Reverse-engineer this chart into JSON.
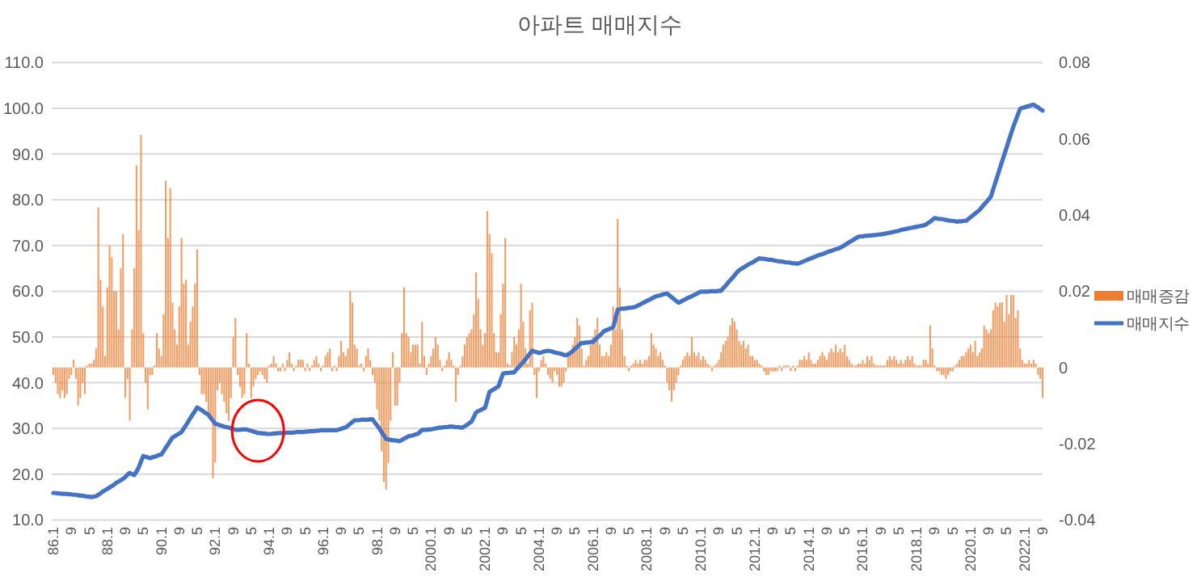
{
  "chart_data": {
    "type": "bar",
    "title": "아파트 매매지수",
    "categories": [
      "86.1",
      null,
      null,
      null,
      null,
      null,
      null,
      null,
      "9",
      null,
      null,
      null,
      null,
      null,
      null,
      null,
      "5",
      null,
      null,
      null,
      null,
      null,
      null,
      null,
      "88.1",
      null,
      null,
      null,
      null,
      null,
      null,
      null,
      "9",
      null,
      null,
      null,
      null,
      null,
      null,
      null,
      "5",
      null,
      null,
      null,
      null,
      null,
      null,
      null,
      "90.1",
      null,
      null,
      null,
      null,
      null,
      null,
      null,
      "9",
      null,
      null,
      null,
      null,
      null,
      null,
      null,
      "5",
      null,
      null,
      null,
      null,
      null,
      null,
      null,
      "92.1",
      null,
      null,
      null,
      null,
      null,
      null,
      null,
      "9",
      null,
      null,
      null,
      null,
      null,
      null,
      null,
      "5",
      null,
      null,
      null,
      null,
      null,
      null,
      null,
      "94.1",
      null,
      null,
      null,
      null,
      null,
      null,
      null,
      "9",
      null,
      null,
      null,
      null,
      null,
      null,
      null,
      "5",
      null,
      null,
      null,
      null,
      null,
      null,
      null,
      "96.1",
      null,
      null,
      null,
      null,
      null,
      null,
      null,
      "9",
      null,
      null,
      null,
      null,
      null,
      null,
      null,
      "5",
      null,
      null,
      null,
      null,
      null,
      null,
      null,
      "98.1",
      null,
      null,
      null,
      null,
      null,
      null,
      null,
      "9",
      null,
      null,
      null,
      null,
      null,
      null,
      null,
      "5",
      null,
      null,
      null,
      null,
      null,
      null,
      null,
      "2000.1",
      null,
      null,
      null,
      null,
      null,
      null,
      null,
      "9",
      null,
      null,
      null,
      null,
      null,
      null,
      null,
      "5",
      null,
      null,
      null,
      null,
      null,
      null,
      null,
      "2002.1",
      null,
      null,
      null,
      null,
      null,
      null,
      null,
      "9",
      null,
      null,
      null,
      null,
      null,
      null,
      null,
      "5",
      null,
      null,
      null,
      null,
      null,
      null,
      null,
      "2004.1",
      null,
      null,
      null,
      null,
      null,
      null,
      null,
      "9",
      null,
      null,
      null,
      null,
      null,
      null,
      null,
      "5",
      null,
      null,
      null,
      null,
      null,
      null,
      null,
      "2006.1",
      null,
      null,
      null,
      null,
      null,
      null,
      null,
      "9",
      null,
      null,
      null,
      null,
      null,
      null,
      null,
      "5",
      null,
      null,
      null,
      null,
      null,
      null,
      null,
      "2008.1",
      null,
      null,
      null,
      null,
      null,
      null,
      null,
      "9",
      null,
      null,
      null,
      null,
      null,
      null,
      null,
      "5",
      null,
      null,
      null,
      null,
      null,
      null,
      null,
      "2010.1",
      null,
      null,
      null,
      null,
      null,
      null,
      null,
      "9",
      null,
      null,
      null,
      null,
      null,
      null,
      null,
      "5",
      null,
      null,
      null,
      null,
      null,
      null,
      null,
      "2012.1",
      null,
      null,
      null,
      null,
      null,
      null,
      null,
      "9",
      null,
      null,
      null,
      null,
      null,
      null,
      null,
      "5",
      null,
      null,
      null,
      null,
      null,
      null,
      null,
      "2014.1",
      null,
      null,
      null,
      null,
      null,
      null,
      null,
      "9",
      null,
      null,
      null,
      null,
      null,
      null,
      null,
      "5",
      null,
      null,
      null,
      null,
      null,
      null,
      null,
      "2016.1",
      null,
      null,
      null,
      null,
      null,
      null,
      null,
      "9",
      null,
      null,
      null,
      null,
      null,
      null,
      null,
      "5",
      null,
      null,
      null,
      null,
      null,
      null,
      null,
      "2018.1",
      null,
      null,
      null,
      null,
      null,
      null,
      null,
      "9",
      null,
      null,
      null,
      null,
      null,
      null,
      null,
      "5",
      null,
      null,
      null,
      null,
      null,
      null,
      null,
      "2020.1",
      null,
      null,
      null,
      null,
      null,
      null,
      null,
      "9",
      null,
      null,
      null,
      null,
      null,
      null,
      null,
      "5",
      null,
      null,
      null,
      null,
      null,
      null,
      null,
      "2022.1",
      null,
      null,
      null,
      null,
      null,
      null,
      null,
      "9"
    ],
    "series": [
      {
        "name": "매매증감",
        "axis": "y2",
        "color": "#ed7d31",
        "values": [
          -0.002,
          -0.004,
          -0.007,
          -0.008,
          -0.006,
          -0.008,
          -0.007,
          -0.003,
          -0.002,
          0.002,
          -0.003,
          -0.01,
          -0.008,
          -0.004,
          -0.007,
          0.0,
          0.001,
          0.001,
          0.002,
          0.005,
          0.042,
          0.023,
          0.016,
          0.003,
          0.021,
          0.032,
          0.029,
          0.02,
          0.02,
          0.01,
          0.026,
          0.035,
          -0.008,
          -0.003,
          -0.014,
          0.01,
          0.026,
          0.053,
          0.036,
          0.061,
          0.009,
          -0.004,
          -0.011,
          -0.002,
          -0.002,
          0.0,
          0.009,
          0.005,
          0.003,
          0.014,
          0.049,
          0.034,
          0.047,
          0.017,
          0.01,
          0.006,
          0.016,
          0.034,
          0.022,
          0.023,
          0.006,
          0.012,
          0.016,
          0.022,
          0.031,
          -0.002,
          -0.007,
          -0.007,
          -0.009,
          -0.012,
          -0.013,
          -0.029,
          -0.025,
          -0.006,
          -0.004,
          -0.007,
          -0.009,
          -0.012,
          -0.014,
          -0.008,
          0.008,
          0.013,
          -0.002,
          -0.005,
          -0.008,
          -0.007,
          0.009,
          0.001,
          -0.008,
          -0.005,
          -0.003,
          -0.002,
          -0.001,
          -0.002,
          -0.003,
          -0.004,
          0.0,
          0.001,
          0.003,
          0.001,
          -0.001,
          -0.001,
          0.001,
          -0.001,
          0.002,
          0.004,
          0.001,
          -0.001,
          0.0,
          0.002,
          0.002,
          0.002,
          -0.001,
          0.001,
          -0.001,
          0.0,
          0.002,
          0.003,
          0.001,
          -0.001,
          0.0,
          0.003,
          0.004,
          0.005,
          -0.001,
          0.0,
          -0.001,
          0.003,
          0.007,
          0.004,
          0.003,
          0.005,
          0.02,
          0.017,
          0.006,
          0.005,
          0.0,
          0.001,
          -0.001,
          0.003,
          0.005,
          0.002,
          -0.002,
          -0.004,
          -0.011,
          -0.014,
          -0.022,
          -0.03,
          -0.032,
          -0.025,
          -0.014,
          0.004,
          -0.01,
          -0.01,
          -0.004,
          0.009,
          0.021,
          0.009,
          0.008,
          0.004,
          0.006,
          0.006,
          0.006,
          0.001,
          0.012,
          0.003,
          -0.002,
          0.001,
          0.003,
          0.005,
          0.008,
          0.006,
          0.002,
          -0.001,
          0.0,
          0.002,
          0.004,
          0.002,
          0.0,
          -0.009,
          -0.002,
          0.0,
          0.003,
          0.006,
          0.008,
          0.009,
          0.01,
          0.014,
          0.025,
          0.018,
          0.01,
          0.006,
          0.009,
          0.041,
          0.035,
          0.03,
          0.009,
          0.004,
          0.004,
          0.014,
          0.022,
          0.034,
          0.001,
          0.0,
          0.004,
          0.008,
          0.006,
          0.01,
          0.022,
          0.012,
          0.005,
          0.001,
          0.015,
          0.017,
          -0.002,
          -0.008,
          -0.001,
          0.002,
          0.003,
          0.001,
          -0.002,
          -0.003,
          -0.004,
          -0.001,
          -0.002,
          -0.005,
          -0.005,
          -0.004,
          -0.001,
          0.003,
          0.004,
          0.006,
          0.008,
          0.013,
          0.011,
          0.005,
          0.0,
          0.002,
          0.003,
          0.006,
          0.008,
          0.01,
          0.013,
          0.006,
          0.003,
          0.003,
          0.004,
          0.003,
          0.006,
          0.016,
          0.01,
          0.039,
          0.021,
          0.01,
          0.003,
          0.0,
          -0.001,
          0.0,
          0.001,
          0.002,
          0.001,
          0.002,
          0.001,
          0.002,
          0.002,
          0.003,
          0.009,
          0.006,
          0.005,
          0.003,
          0.004,
          0.002,
          0.0,
          -0.004,
          -0.006,
          -0.009,
          -0.006,
          -0.004,
          -0.002,
          0.0,
          0.002,
          0.003,
          0.004,
          0.003,
          0.008,
          0.004,
          0.003,
          0.004,
          0.002,
          0.003,
          0.002,
          0.001,
          0.0,
          -0.001,
          0.0,
          0.001,
          0.002,
          0.004,
          0.006,
          0.007,
          0.008,
          0.011,
          0.013,
          0.012,
          0.01,
          0.007,
          0.006,
          0.007,
          0.005,
          0.006,
          0.003,
          0.003,
          0.002,
          0.002,
          0.001,
          0.0,
          -0.001,
          -0.002,
          -0.002,
          -0.001,
          -0.001,
          -0.001,
          -0.001,
          0.0,
          -0.001,
          0.0,
          0.0,
          0.0,
          -0.001,
          0.0,
          -0.001,
          0.0,
          0.002,
          0.002,
          0.003,
          0.002,
          0.004,
          0.002,
          0.001,
          0.001,
          0.002,
          0.003,
          0.004,
          0.003,
          0.002,
          0.004,
          0.005,
          0.004,
          0.006,
          0.004,
          0.005,
          0.004,
          0.006,
          0.003,
          0.002,
          0.001,
          0.0,
          0.0,
          0.001,
          0.001,
          0.002,
          0.001,
          0.003,
          0.002,
          0.003,
          0.001,
          0.0,
          0.0,
          0.0,
          0.0,
          0.0,
          0.002,
          0.003,
          0.002,
          0.003,
          0.002,
          0.001,
          0.002,
          0.001,
          0.002,
          0.003,
          0.002,
          0.003,
          0.001,
          0.0,
          0.0,
          0.0,
          0.002,
          0.002,
          0.001,
          0.011,
          0.005,
          0.0,
          -0.001,
          -0.001,
          -0.002,
          -0.002,
          -0.003,
          -0.002,
          -0.001,
          -0.001,
          0.0,
          0.001,
          0.002,
          0.003,
          0.003,
          0.004,
          0.005,
          0.006,
          0.004,
          0.007,
          0.003,
          0.004,
          0.005,
          0.011,
          0.01,
          0.009,
          0.01,
          0.015,
          0.017,
          0.016,
          0.017,
          0.017,
          0.012,
          0.019,
          0.014,
          0.019,
          0.019,
          0.013,
          0.015,
          0.005,
          0.002,
          0.001,
          0.001,
          0.002,
          0.001,
          0.002,
          0.001,
          -0.002,
          -0.003,
          -0.008
        ]
      },
      {
        "name": "매매지수",
        "type": "line",
        "color": "#4472c4",
        "values": [
          15.9,
          15.9,
          15.8,
          15.8,
          15.7,
          15.7,
          15.7,
          15.6,
          15.6,
          15.5,
          15.5,
          15.4,
          15.3,
          15.3,
          15.2,
          15.1,
          15.1,
          15.0,
          15.1,
          15.2,
          15.5,
          15.8,
          16.2,
          16.5,
          16.8,
          17.1,
          17.4,
          17.7,
          18.1,
          18.4,
          18.7,
          19.0,
          19.4,
          19.9,
          20.3,
          20.0,
          19.8,
          20.6,
          21.5,
          22.8,
          24.0,
          23.8,
          23.7,
          23.5,
          23.7,
          23.8,
          24.0,
          24.2,
          24.3,
          25.0,
          25.8,
          26.5,
          27.3,
          28.0,
          28.3,
          28.6,
          28.9,
          29.2,
          30.0,
          30.7,
          31.5,
          32.3,
          33.1,
          33.8,
          34.6,
          34.3,
          34.0,
          33.6,
          33.3,
          33.0,
          32.3,
          31.7,
          31.0,
          30.9,
          30.7,
          30.6,
          30.4,
          30.3,
          30.2,
          30.0,
          29.9,
          29.7,
          29.7,
          29.7,
          29.8,
          29.8,
          29.8,
          29.6,
          29.5,
          29.3,
          29.2,
          29.0,
          29.0,
          28.9,
          28.9,
          28.8,
          28.8,
          28.8,
          28.9,
          28.9,
          29.0,
          29.0,
          29.0,
          29.0,
          29.1,
          29.1,
          29.1,
          29.1,
          29.2,
          29.2,
          29.2,
          29.2,
          29.3,
          29.3,
          29.4,
          29.4,
          29.4,
          29.5,
          29.5,
          29.6,
          29.6,
          29.6,
          29.6,
          29.6,
          29.6,
          29.6,
          29.6,
          29.8,
          29.9,
          30.1,
          30.2,
          30.6,
          31.0,
          31.4,
          31.8,
          31.8,
          31.8,
          31.9,
          31.9,
          31.9,
          31.9,
          32.0,
          32.0,
          31.3,
          30.7,
          30.0,
          29.2,
          28.5,
          27.7,
          27.6,
          27.5,
          27.4,
          27.4,
          27.3,
          27.2,
          27.5,
          27.8,
          28.0,
          28.3,
          28.4,
          28.5,
          28.7,
          28.8,
          29.2,
          29.7,
          29.7,
          29.7,
          29.8,
          29.8,
          29.9,
          30.0,
          30.1,
          30.2,
          30.2,
          30.3,
          30.3,
          30.4,
          30.4,
          30.4,
          30.3,
          30.3,
          30.2,
          30.2,
          30.5,
          30.8,
          31.2,
          31.5,
          32.5,
          33.5,
          33.8,
          34.0,
          34.3,
          34.5,
          36.2,
          38.0,
          38.3,
          38.6,
          38.9,
          39.2,
          40.6,
          42.0,
          42.1,
          42.1,
          42.2,
          42.2,
          42.3,
          42.9,
          43.4,
          44.0,
          44.5,
          45.1,
          45.8,
          46.4,
          47.0,
          46.8,
          46.7,
          46.5,
          46.6,
          46.8,
          46.9,
          47.0,
          46.9,
          46.8,
          46.6,
          46.5,
          46.4,
          46.3,
          46.1,
          46.0,
          46.2,
          46.5,
          46.9,
          47.4,
          47.8,
          48.3,
          48.7,
          48.7,
          48.8,
          48.8,
          48.9,
          48.9,
          49.4,
          49.9,
          50.3,
          50.8,
          51.3,
          51.5,
          51.7,
          51.9,
          52.1,
          54.0,
          56.0,
          56.1,
          56.2,
          56.2,
          56.3,
          56.4,
          56.4,
          56.5,
          56.6,
          56.9,
          57.1,
          57.4,
          57.6,
          57.9,
          58.1,
          58.4,
          58.6,
          58.9,
          59.0,
          59.1,
          59.3,
          59.4,
          59.5,
          59.1,
          58.7,
          58.3,
          57.9,
          57.5,
          57.7,
          58.0,
          58.2,
          58.5,
          58.7,
          58.9,
          59.2,
          59.4,
          59.7,
          59.9,
          59.9,
          59.9,
          59.9,
          60.0,
          60.0,
          60.0,
          60.0,
          60.1,
          60.1,
          60.7,
          61.2,
          61.8,
          62.4,
          62.9,
          63.5,
          64.1,
          64.6,
          64.9,
          65.2,
          65.5,
          65.8,
          66.1,
          66.3,
          66.6,
          66.9,
          67.2,
          67.1,
          67.1,
          67.0,
          66.9,
          66.9,
          66.8,
          66.7,
          66.6,
          66.5,
          66.5,
          66.4,
          66.3,
          66.3,
          66.2,
          66.1,
          66.1,
          66.0,
          66.2,
          66.4,
          66.6,
          66.8,
          67.0,
          67.2,
          67.4,
          67.6,
          67.8,
          68.0,
          68.1,
          68.3,
          68.5,
          68.7,
          68.8,
          69.0,
          69.2,
          69.3,
          69.5,
          69.8,
          70.1,
          70.4,
          70.7,
          71.0,
          71.3,
          71.6,
          71.9,
          72.0,
          72.0,
          72.1,
          72.1,
          72.2,
          72.2,
          72.3,
          72.3,
          72.4,
          72.4,
          72.5,
          72.6,
          72.7,
          72.8,
          72.9,
          73.0,
          73.1,
          73.2,
          73.4,
          73.5,
          73.6,
          73.7,
          73.8,
          73.9,
          74.0,
          74.1,
          74.2,
          74.3,
          74.4,
          74.5,
          74.9,
          75.2,
          75.6,
          76.0,
          75.9,
          75.8,
          75.8,
          75.7,
          75.6,
          75.5,
          75.4,
          75.4,
          75.3,
          75.2,
          75.3,
          75.3,
          75.4,
          75.4,
          75.8,
          76.2,
          76.6,
          77.0,
          77.4,
          77.8,
          78.4,
          79.0,
          79.5,
          80.1,
          80.7,
          82.2,
          83.8,
          85.3,
          86.9,
          88.4,
          89.9,
          91.4,
          93.0,
          94.5,
          96.0,
          97.3,
          98.6,
          99.9,
          100.1,
          100.2,
          100.4,
          100.5,
          100.7,
          100.8,
          100.5,
          100.2,
          99.8,
          99.5
        ]
      }
    ],
    "ylim": [
      10,
      110
    ],
    "yticks": [
      {
        "value": 10,
        "label": "10.0"
      },
      {
        "value": 20,
        "label": "20.0"
      },
      {
        "value": 30,
        "label": "30.0"
      },
      {
        "value": 40,
        "label": "40.0"
      },
      {
        "value": 50,
        "label": "50.0"
      },
      {
        "value": 60,
        "label": "60.0"
      },
      {
        "value": 70,
        "label": "70.0"
      },
      {
        "value": 80,
        "label": "80.0"
      },
      {
        "value": 90,
        "label": "90.0"
      },
      {
        "value": 100,
        "label": "100.0"
      },
      {
        "value": 110,
        "label": "110.0"
      }
    ],
    "y2lim": [
      -0.04,
      0.08
    ],
    "y2ticks": [
      -0.04,
      -0.02,
      0,
      0.02,
      0.04,
      0.06,
      0.08
    ],
    "grid": "y",
    "legend": "right"
  }
}
